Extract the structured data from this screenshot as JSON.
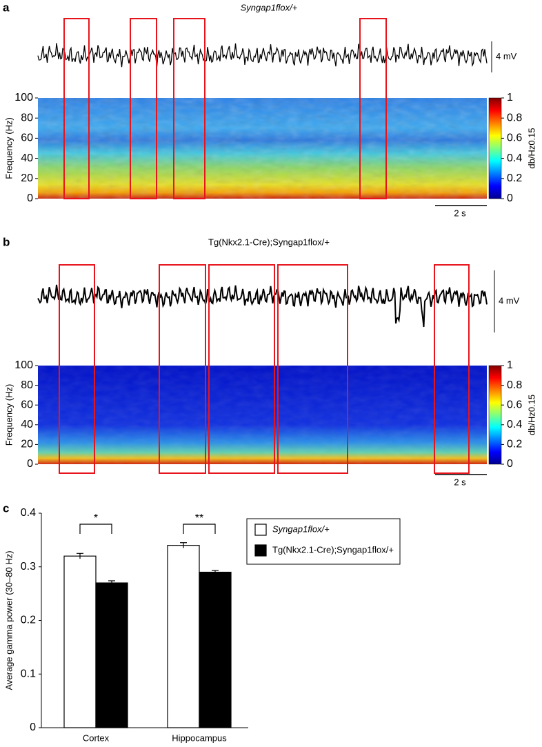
{
  "chart_data": [
    {
      "type": "spectrogram",
      "panel": "a",
      "title": "Syngap1flox/+",
      "trace_scale_label": "4 mV",
      "time_scale_label": "2 s",
      "ylabel": "Frequency (Hz)",
      "ylim": [
        0,
        100
      ],
      "yticks": [
        0,
        20,
        40,
        60,
        80,
        100
      ],
      "colorbar": {
        "label": "db/Hz0.15",
        "lim": [
          0,
          1
        ],
        "ticks": [
          0,
          0.2,
          0.4,
          0.6,
          0.8,
          1
        ]
      }
    },
    {
      "type": "spectrogram",
      "panel": "b",
      "title": "Tg(Nkx2.1-Cre);Syngap1flox/+",
      "trace_scale_label": "4 mV",
      "time_scale_label": "2 s",
      "ylabel": "Frequency (Hz)",
      "ylim": [
        0,
        100
      ],
      "yticks": [
        0,
        20,
        40,
        60,
        80,
        100
      ],
      "colorbar": {
        "label": "db/Hz0.15",
        "lim": [
          0,
          1
        ],
        "ticks": [
          0,
          0.2,
          0.4,
          0.6,
          0.8,
          1
        ]
      }
    },
    {
      "type": "bar",
      "panel": "c",
      "ylabel": "Average gamma power (30–80 Hz)",
      "categories": [
        "Cortex",
        "Hippocampus"
      ],
      "series": [
        {
          "name": "Syngap1flox/+",
          "color": "#ffffff",
          "values": [
            0.32,
            0.34
          ],
          "errors": [
            0.005,
            0.005
          ]
        },
        {
          "name": "Tg(Nkx2.1-Cre);Syngap1flox/+",
          "color": "#000000",
          "values": [
            0.27,
            0.29
          ],
          "errors": [
            0.004,
            0.003
          ]
        }
      ],
      "significance": [
        "*",
        "**"
      ],
      "ylim": [
        0,
        0.4
      ],
      "yticks": [
        0,
        0.1,
        0.2,
        0.3,
        0.4
      ]
    }
  ]
}
